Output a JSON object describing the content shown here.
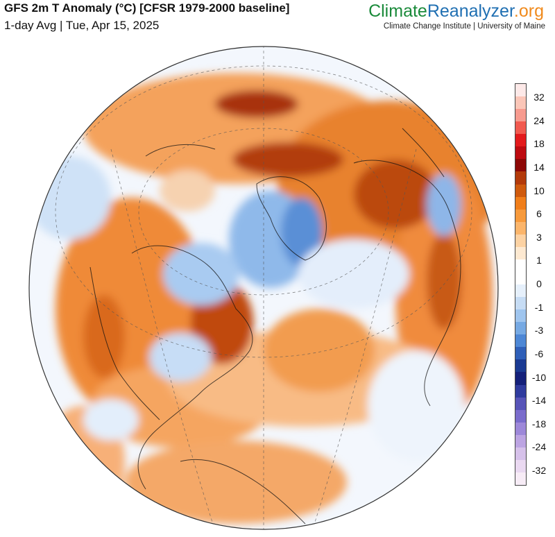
{
  "header": {
    "title": "GFS 2m T Anomaly (°C) [CFSR 1979-2000 baseline]",
    "subtitle": "1-day Avg | Tue, Apr 15, 2025"
  },
  "brand": {
    "part1": "Climate",
    "part2": "Reanalyzer",
    "part3": ".org",
    "tagline": "Climate Change Institute | University of Maine"
  },
  "map": {
    "projection": "orthographic",
    "region": "Northern Hemisphere / Americas / Atlantic"
  },
  "colorbar": {
    "labels": [
      "32",
      "24",
      "18",
      "14",
      "10",
      "6",
      "3",
      "1",
      "0",
      "-1",
      "-3",
      "-6",
      "-10",
      "-14",
      "-18",
      "-24",
      "-32"
    ],
    "colors": [
      "#fde9e8",
      "#fbc6b8",
      "#f79b8f",
      "#f15a4f",
      "#e31a1c",
      "#bd0b10",
      "#8d0806",
      "#b33a0a",
      "#cf5a0d",
      "#f07e1a",
      "#f79a3c",
      "#fbb56b",
      "#fcd2a3",
      "#fde9d1",
      "#ffffff",
      "#ffffff",
      "#e6f0fb",
      "#c6dcf4",
      "#9fc5ee",
      "#76a9e3",
      "#4d87d5",
      "#2f5fb8",
      "#1a3a92",
      "#14207a",
      "#2f3b9e",
      "#5754b8",
      "#7a6ccc",
      "#9d88d9",
      "#bca4e2",
      "#d6c1ea",
      "#ead9f1",
      "#f7ecf6"
    ]
  }
}
